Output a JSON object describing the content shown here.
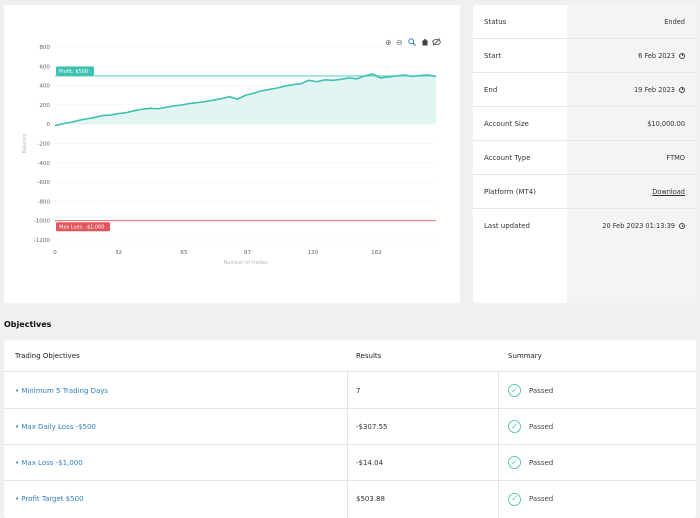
{
  "chart": {
    "toolbar": {
      "zoom_in_icon": "zoom-in-icon",
      "zoom_out_icon": "zoom-out-icon",
      "search_icon": "magnifier-icon",
      "home_icon": "home-icon",
      "hide_icon": "hide-icon"
    },
    "profit_target_label": "Profit: $500",
    "max_loss_label": "Max Loss: -$1,000",
    "ylabel": "Balance",
    "xlabel": "Number of trades"
  },
  "chart_data": {
    "type": "area",
    "x": [
      0,
      4,
      8,
      12,
      16,
      20,
      24,
      28,
      32,
      36,
      40,
      44,
      48,
      52,
      56,
      60,
      64,
      68,
      72,
      76,
      80,
      84,
      88,
      92,
      96,
      100,
      104,
      108,
      112,
      116,
      120,
      124,
      128,
      132,
      136,
      140,
      144,
      148,
      152,
      156,
      160,
      164,
      168,
      172,
      176,
      180,
      184,
      188,
      192
    ],
    "values": [
      -15,
      5,
      20,
      40,
      55,
      70,
      90,
      95,
      110,
      120,
      140,
      155,
      165,
      160,
      175,
      190,
      200,
      215,
      225,
      235,
      250,
      265,
      285,
      260,
      300,
      320,
      345,
      360,
      375,
      395,
      410,
      420,
      455,
      440,
      460,
      455,
      465,
      480,
      470,
      500,
      520,
      480,
      490,
      500,
      510,
      495,
      505,
      510,
      495
    ],
    "ylim": [
      -1200,
      800
    ],
    "xlim": [
      0,
      192
    ],
    "xticks": [
      "0",
      "32",
      "65",
      "97",
      "130",
      "162"
    ],
    "yticks": [
      "800",
      "600",
      "400",
      "200",
      "0",
      "-200",
      "-400",
      "-600",
      "-800",
      "-1000",
      "-1200"
    ],
    "profit_target": 500,
    "max_loss": -1000,
    "line_color": "#3ec1b0",
    "fill_color": "#dff4f1",
    "target_color": "#3ec1b0",
    "loss_color": "#e0565b"
  },
  "info": {
    "rows": [
      {
        "label": "Status",
        "value": "Ended"
      },
      {
        "label": "Start",
        "value": "6 Feb 2023"
      },
      {
        "label": "End",
        "value": "19 Feb 2023"
      },
      {
        "label": "Account Size",
        "value": "$10,000.00"
      },
      {
        "label": "Account Type",
        "value": "FTMO"
      },
      {
        "label": "Platform (MT4)",
        "value": "Download"
      },
      {
        "label": "Last updated",
        "value": "20 Feb 2023 01:13:39"
      }
    ]
  },
  "objectives": {
    "title": "Objectives",
    "headers": {
      "name": "Trading Objectives",
      "results": "Results",
      "summary": "Summary"
    },
    "rows": [
      {
        "name": "Minimum 5 Trading Days",
        "result": "7",
        "summary": "Passed"
      },
      {
        "name": "Max Daily Loss -$500",
        "result": "-$307.55",
        "summary": "Passed"
      },
      {
        "name": "Max Loss -$1,000",
        "result": "-$14.04",
        "summary": "Passed"
      },
      {
        "name": "Profit Target $500",
        "result": "$503.88",
        "summary": "Passed"
      }
    ],
    "pass_icon": "check-circle-icon"
  }
}
